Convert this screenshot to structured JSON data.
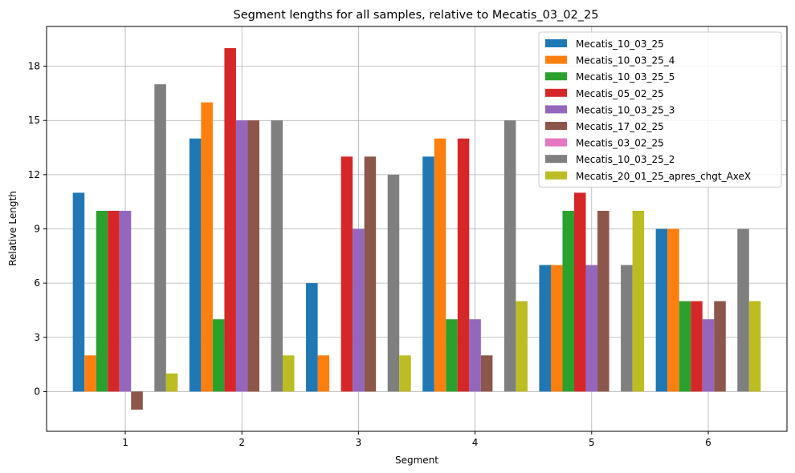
{
  "chart_data": {
    "type": "bar",
    "title": "Segment lengths for all samples, relative to Mecatis_03_02_25",
    "xlabel": "Segment",
    "ylabel": "Relative Length",
    "categories": [
      "1",
      "2",
      "3",
      "4",
      "5",
      "6"
    ],
    "ylim": [
      -2.2,
      20.2
    ],
    "yticks": [
      0,
      3,
      6,
      9,
      12,
      15,
      18
    ],
    "grid": true,
    "legend_position": "top-right",
    "series": [
      {
        "name": "Mecatis_10_03_25",
        "color": "#1f77b4",
        "values": [
          11,
          14,
          6,
          13,
          7,
          9
        ]
      },
      {
        "name": "Mecatis_10_03_25_4",
        "color": "#ff7f0e",
        "values": [
          2,
          16,
          2,
          14,
          7,
          9
        ]
      },
      {
        "name": "Mecatis_10_03_25_5",
        "color": "#2ca02c",
        "values": [
          10,
          4,
          0,
          4,
          10,
          5
        ]
      },
      {
        "name": "Mecatis_05_02_25",
        "color": "#d62728",
        "values": [
          10,
          19,
          13,
          14,
          11,
          5
        ]
      },
      {
        "name": "Mecatis_10_03_25_3",
        "color": "#9467bd",
        "values": [
          10,
          15,
          9,
          4,
          7,
          4
        ]
      },
      {
        "name": "Mecatis_17_02_25",
        "color": "#8c564b",
        "values": [
          -1,
          15,
          13,
          2,
          10,
          5
        ]
      },
      {
        "name": "Mecatis_03_02_25",
        "color": "#e377c2",
        "values": [
          0,
          0,
          0,
          0,
          0,
          0
        ]
      },
      {
        "name": "Mecatis_10_03_25_2",
        "color": "#7f7f7f",
        "values": [
          17,
          15,
          12,
          15,
          7,
          9
        ]
      },
      {
        "name": "Mecatis_20_01_25_apres_chgt_AxeX",
        "color": "#bcbd22",
        "values": [
          1,
          2,
          2,
          5,
          10,
          5
        ]
      }
    ]
  }
}
